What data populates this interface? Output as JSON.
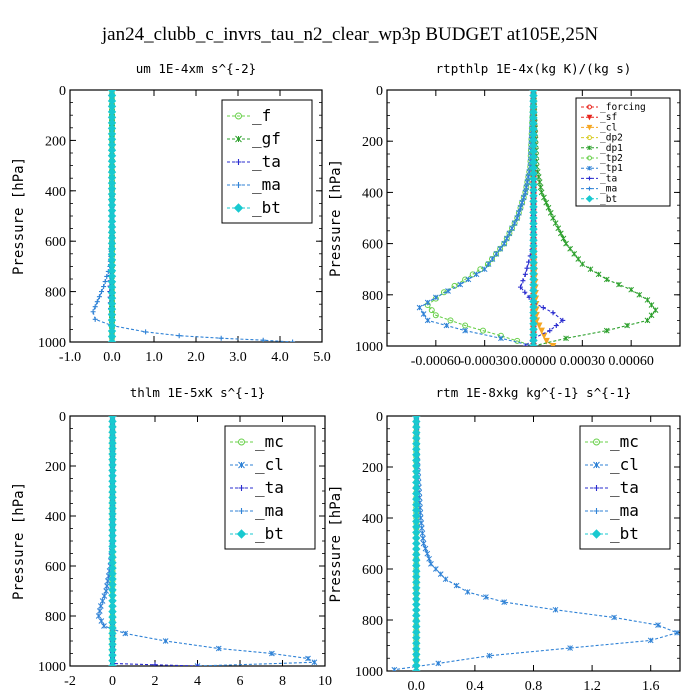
{
  "title": "jan24_clubb_c_invrs_tau_n2_clear_wp3p  BUDGET at105E,25N",
  "colors": {
    "red": "#e8241c",
    "orange": "#f6a623",
    "yellow": "#d8cc24",
    "green": "#2ca02c",
    "lgreen": "#68d04a",
    "dkblue": "#2a2ccf",
    "blue": "#2f82d6",
    "cyan": "#19c9d0",
    "brightgreen": "#1ec81e"
  },
  "chart_data": [
    {
      "type": "line",
      "title": "um  1E-4xm s^{-2}",
      "ylabel": "Pressure [hPa]",
      "xlim": [
        -1.0,
        5.0
      ],
      "ylim": [
        1000,
        0
      ],
      "xticks": [
        "-1.0",
        "0.0",
        "1.0",
        "2.0",
        "3.0",
        "4.0",
        "5.0"
      ],
      "xtick_values": [
        -1,
        0,
        1,
        2,
        3,
        4,
        5
      ],
      "yticks": [
        "0",
        "200",
        "400",
        "600",
        "800",
        "1000"
      ],
      "legend": {
        "position": "top-right",
        "style": "big"
      },
      "series": [
        {
          "name": "_f",
          "color": "#68d04a",
          "marker": "circle",
          "points": [
            [
              0,
              0
            ],
            [
              0,
              100
            ],
            [
              0,
              200
            ],
            [
              0,
              300
            ],
            [
              0,
              400
            ],
            [
              0,
              500
            ],
            [
              0,
              600
            ],
            [
              0,
              700
            ],
            [
              0,
              800
            ],
            [
              0,
              900
            ],
            [
              0,
              1000
            ]
          ]
        },
        {
          "name": "_gf",
          "color": "#2ca02c",
          "marker": "x",
          "points": [
            [
              0,
              0
            ],
            [
              0,
              200
            ],
            [
              0,
              400
            ],
            [
              0,
              600
            ],
            [
              0,
              800
            ],
            [
              0,
              1000
            ]
          ]
        },
        {
          "name": "_ta",
          "color": "#2a2ccf",
          "marker": "plus",
          "points": [
            [
              0,
              0
            ],
            [
              0,
              500
            ],
            [
              -0.05,
              800
            ],
            [
              0,
              1000
            ]
          ]
        },
        {
          "name": "_ma",
          "color": "#2f82d6",
          "marker": "plus",
          "points": [
            [
              0,
              0
            ],
            [
              0,
              400
            ],
            [
              0,
              600
            ],
            [
              -0.05,
              700
            ],
            [
              -0.2,
              780
            ],
            [
              -0.35,
              840
            ],
            [
              -0.45,
              880
            ],
            [
              -0.4,
              910
            ],
            [
              0.0,
              935
            ],
            [
              0.8,
              960
            ],
            [
              1.6,
              975
            ],
            [
              2.6,
              985
            ],
            [
              3.6,
              993
            ],
            [
              4.3,
              1000
            ]
          ]
        },
        {
          "name": "_bt",
          "color": "#19c9d0",
          "marker": "diamond",
          "points": [
            [
              0,
              0
            ],
            [
              0,
              500
            ],
            [
              0,
              1000
            ]
          ]
        }
      ]
    },
    {
      "type": "line",
      "title": "rtpthlp  1E-4x(kg K)/(kg s)",
      "ylabel": "Pressure [hPa]",
      "xlim": [
        -0.0009,
        0.0009
      ],
      "ylim": [
        1000,
        0
      ],
      "xticks": [
        "-0.00060",
        "-0.00030",
        "0.00000",
        "0.00030",
        "0.00060"
      ],
      "xtick_values": [
        -0.0006,
        -0.0003,
        0.0,
        0.0003,
        0.0006
      ],
      "yticks": [
        "0",
        "200",
        "400",
        "600",
        "800",
        "1000"
      ],
      "legend": {
        "position": "top-right",
        "style": "small"
      },
      "series": [
        {
          "name": "_forcing",
          "color": "#e8241c",
          "marker": "circle",
          "points": [
            [
              0,
              0
            ],
            [
              0,
              100
            ],
            [
              0,
              200
            ],
            [
              0,
              300
            ],
            [
              0,
              400
            ],
            [
              0,
              500
            ],
            [
              0,
              600
            ],
            [
              0,
              700
            ],
            [
              0,
              800
            ],
            [
              0,
              900
            ],
            [
              0,
              1000
            ]
          ]
        },
        {
          "name": "_sf",
          "color": "#e8241c",
          "marker": "tri",
          "points": [
            [
              0,
              0
            ],
            [
              0,
              500
            ],
            [
              0,
              1000
            ]
          ]
        },
        {
          "name": "_cl",
          "color": "#f6a623",
          "marker": "tri",
          "points": [
            [
              0,
              0
            ],
            [
              0,
              600
            ],
            [
              2e-05,
              900
            ],
            [
              8e-05,
              980
            ],
            [
              0.00012,
              1000
            ]
          ]
        },
        {
          "name": "_dp2",
          "color": "#d8cc24",
          "marker": "circle",
          "points": [
            [
              0,
              0
            ],
            [
              0,
              500
            ],
            [
              0,
              1000
            ]
          ]
        },
        {
          "name": "_dp1",
          "color": "#2ca02c",
          "marker": "x",
          "points": [
            [
              0,
              0
            ],
            [
              2e-05,
              300
            ],
            [
              5e-05,
              400
            ],
            [
              0.00012,
              500
            ],
            [
              0.0002,
              600
            ],
            [
              0.0003,
              680
            ],
            [
              0.00045,
              740
            ],
            [
              0.0006,
              780
            ],
            [
              0.0007,
              820
            ],
            [
              0.00075,
              860
            ],
            [
              0.0007,
              900
            ],
            [
              0.00045,
              940
            ],
            [
              0.0002,
              970
            ],
            [
              0,
              1000
            ]
          ]
        },
        {
          "name": "_tp2",
          "color": "#68d04a",
          "marker": "circle",
          "points": [
            [
              0,
              0
            ],
            [
              -2e-05,
              300
            ],
            [
              -5e-05,
              400
            ],
            [
              -0.0001,
              500
            ],
            [
              -0.00018,
              600
            ],
            [
              -0.00028,
              680
            ],
            [
              -0.00042,
              740
            ],
            [
              -0.00055,
              790
            ],
            [
              -0.00065,
              840
            ],
            [
              -0.0006,
              880
            ],
            [
              -0.00042,
              920
            ],
            [
              -0.0002,
              960
            ],
            [
              0,
              1000
            ]
          ]
        },
        {
          "name": "_tp1",
          "color": "#2f82d6",
          "marker": "x",
          "points": [
            [
              0,
              0
            ],
            [
              -2e-05,
              300
            ],
            [
              -5e-05,
              400
            ],
            [
              -0.0001,
              500
            ],
            [
              -0.00018,
              600
            ],
            [
              -0.0003,
              700
            ],
            [
              -0.00045,
              760
            ],
            [
              -0.0006,
              810
            ],
            [
              -0.0007,
              850
            ],
            [
              -0.00065,
              900
            ],
            [
              -0.00042,
              940
            ],
            [
              -0.0002,
              970
            ],
            [
              0,
              1000
            ]
          ]
        },
        {
          "name": "_ta",
          "color": "#2a2ccf",
          "marker": "plus",
          "points": [
            [
              0,
              0
            ],
            [
              0,
              600
            ],
            [
              -5e-05,
              720
            ],
            [
              -8e-05,
              770
            ],
            [
              0,
              830
            ],
            [
              0.00012,
              870
            ],
            [
              0.00018,
              900
            ],
            [
              0.0001,
              940
            ],
            [
              0,
              970
            ],
            [
              -5e-05,
              1000
            ]
          ]
        },
        {
          "name": "_ma",
          "color": "#2f82d6",
          "marker": "plus",
          "points": [
            [
              0,
              0
            ],
            [
              0,
              500
            ],
            [
              0,
              1000
            ]
          ]
        },
        {
          "name": "_bt",
          "color": "#19c9d0",
          "marker": "diamond",
          "points": [
            [
              0,
              0
            ],
            [
              0,
              500
            ],
            [
              0,
              1000
            ]
          ]
        }
      ]
    },
    {
      "type": "line",
      "title": "thlm  1E-5xK s^{-1}",
      "ylabel": "Pressure [hPa]",
      "xlim": [
        -2,
        10
      ],
      "ylim": [
        1000,
        0
      ],
      "xticks": [
        "-2",
        "0",
        "2",
        "4",
        "6",
        "8",
        "10"
      ],
      "xtick_values": [
        -2,
        0,
        2,
        4,
        6,
        8,
        10
      ],
      "yticks": [
        "0",
        "200",
        "400",
        "600",
        "800",
        "1000"
      ],
      "legend": {
        "position": "top-right",
        "style": "big"
      },
      "series": [
        {
          "name": "_mc",
          "color": "#68d04a",
          "marker": "circle",
          "points": [
            [
              0,
              0
            ],
            [
              0,
              100
            ],
            [
              0,
              200
            ],
            [
              0,
              300
            ],
            [
              0,
              400
            ],
            [
              0,
              500
            ],
            [
              0,
              600
            ],
            [
              0,
              700
            ],
            [
              0,
              800
            ],
            [
              0,
              900
            ],
            [
              0,
              1000
            ]
          ]
        },
        {
          "name": "_cl",
          "color": "#2f82d6",
          "marker": "x",
          "points": [
            [
              0,
              0
            ],
            [
              0,
              300
            ],
            [
              0,
              500
            ],
            [
              -0.1,
              600
            ],
            [
              -0.3,
              700
            ],
            [
              -0.55,
              760
            ],
            [
              -0.65,
              800
            ],
            [
              -0.4,
              840
            ],
            [
              0.6,
              870
            ],
            [
              2.5,
              900
            ],
            [
              5.0,
              930
            ],
            [
              7.5,
              950
            ],
            [
              9.2,
              970
            ],
            [
              9.5,
              985
            ],
            [
              4.0,
              1000
            ]
          ]
        },
        {
          "name": "_ta",
          "color": "#2a2ccf",
          "marker": "plus",
          "points": [
            [
              0,
              0
            ],
            [
              0,
              500
            ],
            [
              0,
              990
            ],
            [
              2,
              995
            ],
            [
              4,
              1000
            ]
          ]
        },
        {
          "name": "_ma",
          "color": "#2f82d6",
          "marker": "plus",
          "points": [
            [
              0,
              0
            ],
            [
              0,
              500
            ],
            [
              0,
              1000
            ]
          ]
        },
        {
          "name": "_bt",
          "color": "#19c9d0",
          "marker": "diamond",
          "points": [
            [
              0,
              0
            ],
            [
              0,
              500
            ],
            [
              0,
              1000
            ]
          ]
        }
      ]
    },
    {
      "type": "line",
      "title": "rtm  1E-8xkg kg^{-1} s^{-1}",
      "ylabel": "Pressure [hPa]",
      "xlim": [
        -0.2,
        1.8
      ],
      "ylim": [
        1000,
        0
      ],
      "xticks": [
        "0.0",
        "0.4",
        "0.8",
        "1.2",
        "1.6"
      ],
      "xtick_values": [
        0,
        0.4,
        0.8,
        1.2,
        1.6
      ],
      "yticks": [
        "0",
        "200",
        "400",
        "600",
        "800",
        "1000"
      ],
      "legend": {
        "position": "top-right",
        "style": "big"
      },
      "series": [
        {
          "name": "_mc",
          "color": "#68d04a",
          "marker": "circle",
          "points": [
            [
              0,
              0
            ],
            [
              0,
              100
            ],
            [
              0,
              200
            ],
            [
              0,
              300
            ],
            [
              0,
              400
            ],
            [
              0,
              500
            ],
            [
              0,
              600
            ],
            [
              0,
              700
            ],
            [
              0,
              800
            ],
            [
              0,
              900
            ],
            [
              0,
              1000
            ]
          ]
        },
        {
          "name": "_cl",
          "color": "#2f82d6",
          "marker": "x",
          "points": [
            [
              0,
              0
            ],
            [
              0.005,
              100
            ],
            [
              0.01,
              200
            ],
            [
              0.02,
              300
            ],
            [
              0.03,
              400
            ],
            [
              0.05,
              500
            ],
            [
              0.1,
              580
            ],
            [
              0.2,
              640
            ],
            [
              0.35,
              690
            ],
            [
              0.6,
              730
            ],
            [
              0.95,
              760
            ],
            [
              1.35,
              790
            ],
            [
              1.65,
              820
            ],
            [
              1.78,
              850
            ],
            [
              1.6,
              880
            ],
            [
              1.05,
              910
            ],
            [
              0.5,
              940
            ],
            [
              0.15,
              970
            ],
            [
              -0.15,
              995
            ]
          ]
        },
        {
          "name": "_ta",
          "color": "#2a2ccf",
          "marker": "plus",
          "points": [
            [
              0,
              0
            ],
            [
              0,
              500
            ],
            [
              0,
              1000
            ]
          ]
        },
        {
          "name": "_ma",
          "color": "#2f82d6",
          "marker": "plus",
          "points": [
            [
              0,
              0
            ],
            [
              0,
              500
            ],
            [
              0,
              1000
            ]
          ]
        },
        {
          "name": "_bt",
          "color": "#19c9d0",
          "marker": "diamond",
          "points": [
            [
              0,
              0
            ],
            [
              0,
              500
            ],
            [
              0,
              1000
            ]
          ]
        }
      ]
    }
  ]
}
